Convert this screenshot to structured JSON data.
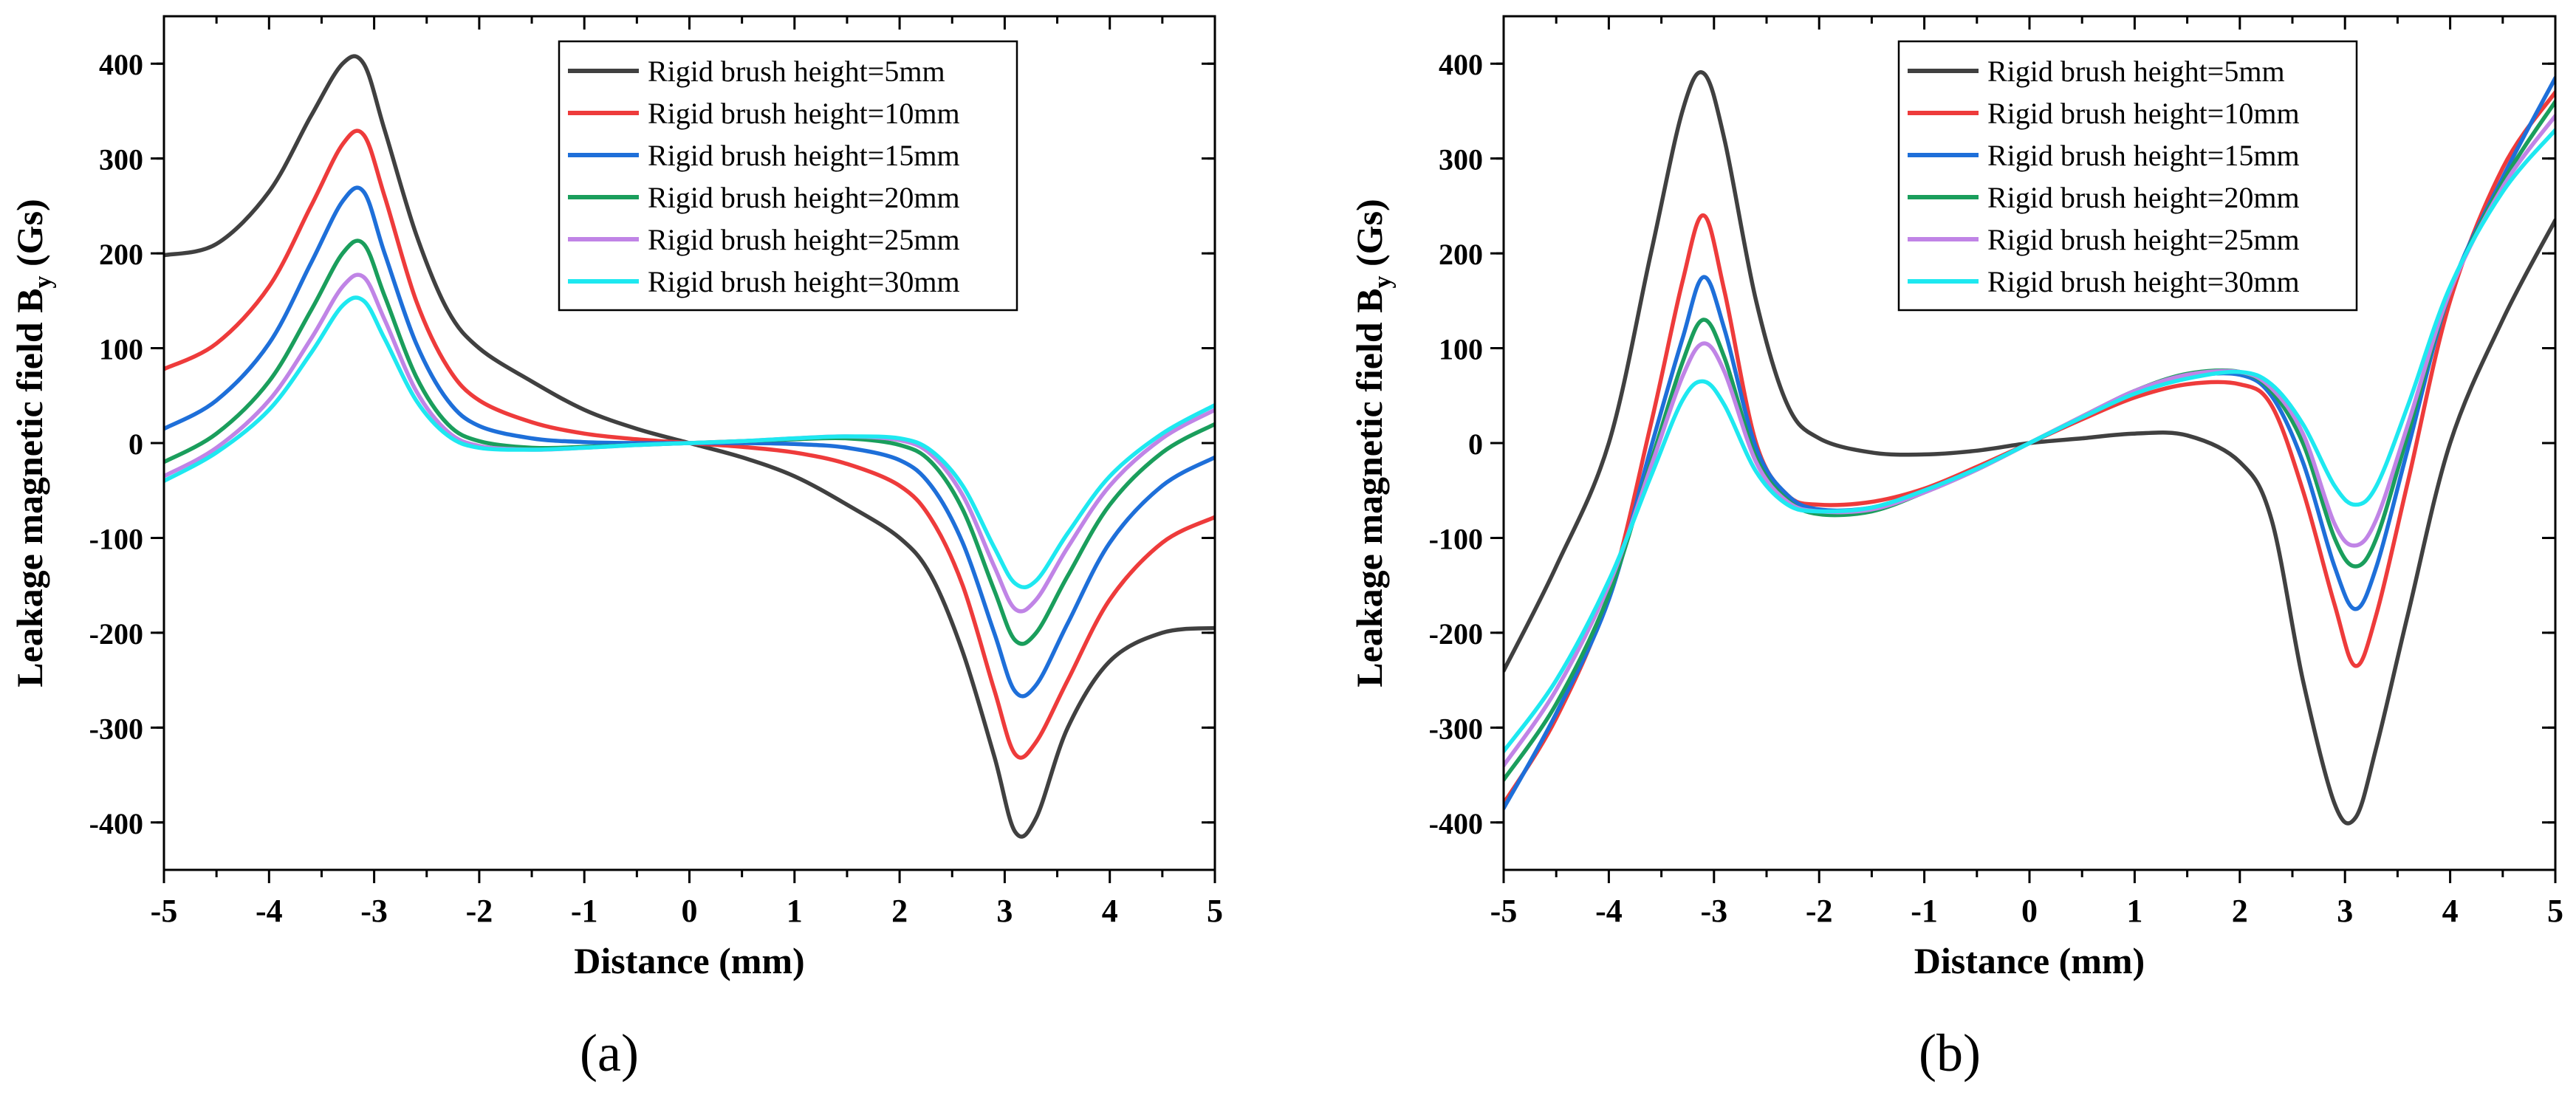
{
  "panel_labels": [
    "(a)",
    "(b)"
  ],
  "chart_data": [
    {
      "type": "line",
      "panel": "(a)",
      "xlabel": "Distance (mm)",
      "ylabel": "Leakage magnetic field B",
      "ylabel_sub": "y",
      "ylabel_unit": "(Gs)",
      "xlim": [
        -5,
        5
      ],
      "ylim": [
        -450,
        450
      ],
      "xticks": [
        -5,
        -4,
        -3,
        -2,
        -1,
        0,
        1,
        2,
        3,
        4,
        5
      ],
      "yticks": [
        -400,
        -300,
        -200,
        -100,
        0,
        100,
        200,
        300,
        400
      ],
      "legend_position": "top-right",
      "series": [
        {
          "name": "Rigid brush height=5mm",
          "color": "#404040",
          "x": [
            -5,
            -4.5,
            -4,
            -3.6,
            -3.3,
            -3.1,
            -2.9,
            -2.6,
            -2.3,
            -2,
            -1.5,
            -1,
            -0.5,
            0,
            0.5,
            1,
            1.5,
            2,
            2.3,
            2.6,
            2.9,
            3.1,
            3.3,
            3.6,
            4,
            4.5,
            5
          ],
          "y": [
            198,
            210,
            265,
            345,
            400,
            400,
            330,
            220,
            140,
            100,
            65,
            35,
            15,
            0,
            -15,
            -35,
            -65,
            -100,
            -140,
            -220,
            -330,
            -410,
            -395,
            -300,
            -230,
            -200,
            -195
          ]
        },
        {
          "name": "Rigid brush height=10mm",
          "color": "#ee3b3b",
          "x": [
            -5,
            -4.5,
            -4,
            -3.6,
            -3.3,
            -3.1,
            -2.9,
            -2.6,
            -2.3,
            -2,
            -1.5,
            -1,
            -0.5,
            0,
            0.5,
            1,
            1.5,
            2,
            2.3,
            2.6,
            2.9,
            3.1,
            3.3,
            3.6,
            4,
            4.5,
            5
          ],
          "y": [
            78,
            105,
            165,
            250,
            315,
            325,
            260,
            150,
            80,
            45,
            22,
            10,
            4,
            0,
            -4,
            -10,
            -22,
            -45,
            -80,
            -150,
            -260,
            -328,
            -315,
            -250,
            -165,
            -105,
            -78
          ]
        },
        {
          "name": "Rigid brush height=15mm",
          "color": "#1e6fd9",
          "x": [
            -5,
            -4.5,
            -4,
            -3.6,
            -3.3,
            -3.1,
            -2.9,
            -2.6,
            -2.3,
            -2,
            -1.5,
            -1,
            -0.5,
            0,
            0.5,
            1,
            1.5,
            2,
            2.3,
            2.6,
            2.9,
            3.1,
            3.3,
            3.6,
            4,
            4.5,
            5
          ],
          "y": [
            15,
            45,
            105,
            190,
            255,
            265,
            200,
            105,
            45,
            18,
            5,
            1,
            0,
            0,
            0,
            -1,
            -5,
            -18,
            -45,
            -105,
            -200,
            -262,
            -255,
            -190,
            -105,
            -45,
            -15
          ]
        },
        {
          "name": "Rigid brush height=20mm",
          "color": "#1a9e5c",
          "x": [
            -5,
            -4.5,
            -4,
            -3.6,
            -3.3,
            -3.1,
            -2.9,
            -2.6,
            -2.3,
            -2,
            -1.5,
            -1,
            -0.5,
            0,
            0.5,
            1,
            1.5,
            2,
            2.3,
            2.6,
            2.9,
            3.1,
            3.3,
            3.6,
            4,
            4.5,
            5
          ],
          "y": [
            -20,
            10,
            65,
            140,
            200,
            210,
            155,
            70,
            20,
            2,
            -5,
            -4,
            -2,
            0,
            2,
            4,
            5,
            -2,
            -20,
            -70,
            -155,
            -208,
            -200,
            -140,
            -65,
            -10,
            20
          ]
        },
        {
          "name": "Rigid brush height=25mm",
          "color": "#c084e6",
          "x": [
            -5,
            -4.5,
            -4,
            -3.6,
            -3.3,
            -3.1,
            -2.9,
            -2.6,
            -2.3,
            -2,
            -1.5,
            -1,
            -0.5,
            0,
            0.5,
            1,
            1.5,
            2,
            2.3,
            2.6,
            2.9,
            3.1,
            3.3,
            3.6,
            4,
            4.5,
            5
          ],
          "y": [
            -35,
            -5,
            45,
            110,
            165,
            175,
            130,
            55,
            12,
            -3,
            -7,
            -5,
            -2,
            0,
            2,
            5,
            7,
            3,
            -12,
            -55,
            -130,
            -175,
            -165,
            -110,
            -45,
            5,
            35
          ]
        },
        {
          "name": "Rigid brush height=30mm",
          "color": "#1ee8f0",
          "x": [
            -5,
            -4.5,
            -4,
            -3.6,
            -3.3,
            -3.1,
            -2.9,
            -2.6,
            -2.3,
            -2,
            -1.5,
            -1,
            -0.5,
            0,
            0.5,
            1,
            1.5,
            2,
            2.3,
            2.6,
            2.9,
            3.1,
            3.3,
            3.6,
            4,
            4.5,
            5
          ],
          "y": [
            -40,
            -10,
            35,
            95,
            145,
            150,
            110,
            45,
            8,
            -5,
            -7,
            -5,
            -2,
            0,
            2,
            5,
            7,
            5,
            -8,
            -45,
            -110,
            -148,
            -145,
            -95,
            -35,
            10,
            40
          ]
        }
      ]
    },
    {
      "type": "line",
      "panel": "(b)",
      "xlabel": "Distance (mm)",
      "ylabel": "Leakage magnetic field B",
      "ylabel_sub": "y",
      "ylabel_unit": "(Gs)",
      "xlim": [
        -5,
        5
      ],
      "ylim": [
        -450,
        450
      ],
      "xticks": [
        -5,
        -4,
        -3,
        -2,
        -1,
        0,
        1,
        2,
        3,
        4,
        5
      ],
      "yticks": [
        -400,
        -300,
        -200,
        -100,
        0,
        100,
        200,
        300,
        400
      ],
      "legend_position": "top-right",
      "series": [
        {
          "name": "Rigid brush height=5mm",
          "color": "#404040",
          "x": [
            -5,
            -4.5,
            -4,
            -3.6,
            -3.3,
            -3.1,
            -2.9,
            -2.6,
            -2.3,
            -2,
            -1.5,
            -1,
            -0.5,
            0,
            0.5,
            1,
            1.5,
            2,
            2.3,
            2.6,
            2.9,
            3.1,
            3.3,
            3.6,
            4,
            4.5,
            5
          ],
          "y": [
            -240,
            -130,
            0,
            200,
            350,
            390,
            320,
            150,
            40,
            5,
            -10,
            -12,
            -8,
            0,
            5,
            10,
            8,
            -20,
            -80,
            -250,
            -380,
            -395,
            -320,
            -180,
            0,
            130,
            235
          ]
        },
        {
          "name": "Rigid brush height=10mm",
          "color": "#ee3b3b",
          "x": [
            -5,
            -4.5,
            -4,
            -3.6,
            -3.3,
            -3.1,
            -2.9,
            -2.6,
            -2.3,
            -2,
            -1.5,
            -1,
            -0.5,
            0,
            0.5,
            1,
            1.5,
            2,
            2.3,
            2.6,
            2.9,
            3.1,
            3.3,
            3.6,
            4,
            4.5,
            5
          ],
          "y": [
            -380,
            -290,
            -160,
            20,
            170,
            240,
            160,
            0,
            -55,
            -65,
            -62,
            -48,
            -25,
            0,
            25,
            48,
            62,
            62,
            40,
            -50,
            -170,
            -235,
            -180,
            -40,
            150,
            290,
            370
          ]
        },
        {
          "name": "Rigid brush height=15mm",
          "color": "#1e6fd9",
          "x": [
            -5,
            -4.5,
            -4,
            -3.6,
            -3.3,
            -3.1,
            -2.9,
            -2.6,
            -2.3,
            -2,
            -1.5,
            -1,
            -0.5,
            0,
            0.5,
            1,
            1.5,
            2,
            2.3,
            2.6,
            2.9,
            3.1,
            3.3,
            3.6,
            4,
            4.5,
            5
          ],
          "y": [
            -385,
            -285,
            -165,
            -5,
            110,
            175,
            120,
            -5,
            -55,
            -70,
            -68,
            -50,
            -27,
            0,
            27,
            55,
            70,
            72,
            50,
            -20,
            -130,
            -175,
            -130,
            -5,
            160,
            280,
            385
          ]
        },
        {
          "name": "Rigid brush height=20mm",
          "color": "#1a9e5c",
          "x": [
            -5,
            -4.5,
            -4,
            -3.6,
            -3.3,
            -3.1,
            -2.9,
            -2.6,
            -2.3,
            -2,
            -1.5,
            -1,
            -0.5,
            0,
            0.5,
            1,
            1.5,
            2,
            2.3,
            2.6,
            2.9,
            3.1,
            3.3,
            3.6,
            4,
            4.5,
            5
          ],
          "y": [
            -355,
            -275,
            -160,
            -20,
            85,
            130,
            90,
            -15,
            -60,
            -75,
            -72,
            -52,
            -28,
            0,
            28,
            55,
            73,
            75,
            55,
            0,
            -100,
            -130,
            -100,
            10,
            160,
            275,
            360
          ]
        },
        {
          "name": "Rigid brush height=25mm",
          "color": "#c084e6",
          "x": [
            -5,
            -4.5,
            -4,
            -3.6,
            -3.3,
            -3.1,
            -2.9,
            -2.6,
            -2.3,
            -2,
            -1.5,
            -1,
            -0.5,
            0,
            0.5,
            1,
            1.5,
            2,
            2.3,
            2.6,
            2.9,
            3.1,
            3.3,
            3.6,
            4,
            4.5,
            5
          ],
          "y": [
            -340,
            -260,
            -150,
            -25,
            70,
            105,
            75,
            -20,
            -62,
            -72,
            -70,
            -52,
            -28,
            0,
            28,
            55,
            72,
            75,
            58,
            10,
            -85,
            -108,
            -80,
            20,
            160,
            270,
            345
          ]
        },
        {
          "name": "Rigid brush height=30mm",
          "color": "#1ee8f0",
          "x": [
            -5,
            -4.5,
            -4,
            -3.6,
            -3.3,
            -3.1,
            -2.9,
            -2.6,
            -2.3,
            -2,
            -1.5,
            -1,
            -0.5,
            0,
            0.5,
            1,
            1.5,
            2,
            2.3,
            2.6,
            2.9,
            3.1,
            3.3,
            3.6,
            4,
            4.5,
            5
          ],
          "y": [
            -325,
            -250,
            -145,
            -35,
            45,
            65,
            40,
            -30,
            -65,
            -72,
            -68,
            -50,
            -27,
            0,
            27,
            52,
            68,
            75,
            62,
            20,
            -45,
            -65,
            -45,
            40,
            165,
            265,
            330
          ]
        }
      ]
    }
  ]
}
